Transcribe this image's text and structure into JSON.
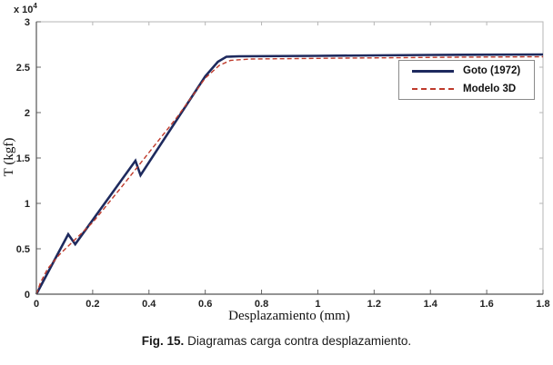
{
  "figure": {
    "caption": {
      "label": "Fig. 15.",
      "text": " Diagramas carga contra desplazamiento."
    }
  },
  "chart_data": {
    "type": "line",
    "title": "",
    "xlabel": "Desplazamiento (mm)",
    "ylabel": "T (kgf)",
    "y_multiplier_base": "x 10",
    "y_multiplier_exp": "4",
    "xlim": [
      0,
      1.8
    ],
    "ylim": [
      0,
      3
    ],
    "grid": false,
    "legend_position": "upper right",
    "x_ticks": [
      "0",
      "0.2",
      "0.4",
      "0.6",
      "0.8",
      "1",
      "1.2",
      "1.4",
      "1.6",
      "1.8"
    ],
    "y_ticks": [
      "0",
      "0.5",
      "1",
      "1.5",
      "2",
      "2.5",
      "3"
    ],
    "colors": {
      "axis": "#555555",
      "box": "#b5b5b5",
      "tick": "#666666",
      "series1": "#1e2a5e",
      "series2": "#bf3a2b"
    },
    "series": [
      {
        "name": "Goto (1972)",
        "color": "#1e2a5e",
        "style": "solid",
        "width": 2.6,
        "points": [
          [
            0,
            0
          ],
          [
            0.113,
            0.66
          ],
          [
            0.138,
            0.55
          ],
          [
            0.352,
            1.47
          ],
          [
            0.37,
            1.31
          ],
          [
            0.6,
            2.4
          ],
          [
            0.645,
            2.56
          ],
          [
            0.675,
            2.615
          ],
          [
            0.72,
            2.62
          ],
          [
            1.0,
            2.625
          ],
          [
            1.4,
            2.635
          ],
          [
            1.8,
            2.64
          ]
        ]
      },
      {
        "name": "Modelo 3D",
        "color": "#bf3a2b",
        "style": "dashed",
        "width": 1.4,
        "points": [
          [
            0,
            0
          ],
          [
            0.015,
            0.13
          ],
          [
            0.04,
            0.28
          ],
          [
            0.08,
            0.43
          ],
          [
            0.12,
            0.55
          ],
          [
            0.2,
            0.79
          ],
          [
            0.3,
            1.17
          ],
          [
            0.4,
            1.56
          ],
          [
            0.5,
            1.95
          ],
          [
            0.6,
            2.38
          ],
          [
            0.65,
            2.52
          ],
          [
            0.69,
            2.575
          ],
          [
            0.76,
            2.59
          ],
          [
            1.1,
            2.6
          ],
          [
            1.5,
            2.61
          ],
          [
            1.8,
            2.615
          ]
        ]
      }
    ]
  }
}
